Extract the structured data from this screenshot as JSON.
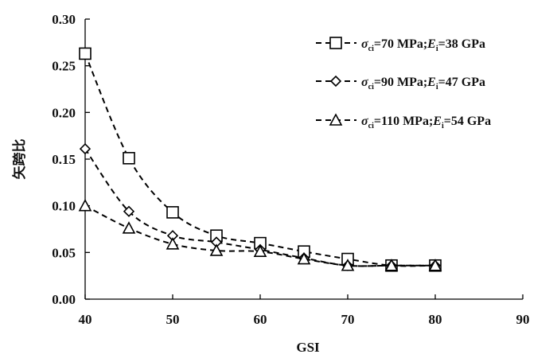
{
  "chart_data": {
    "type": "line",
    "xlabel": "GSI",
    "ylabel": "矢跨比",
    "xlim": [
      40,
      90
    ],
    "ylim": [
      0,
      0.3
    ],
    "x_ticks": [
      "40",
      "50",
      "60",
      "70",
      "80",
      "90"
    ],
    "y_ticks": [
      "0.00",
      "0.05",
      "0.10",
      "0.15",
      "0.20",
      "0.25",
      "0.30"
    ],
    "grid": false,
    "legend_position": "top-right",
    "x": [
      40,
      45,
      50,
      55,
      60,
      65,
      70,
      75,
      80
    ],
    "series": [
      {
        "name": "σci=70 MPa;Ei=38 GPa",
        "legend": {
          "sym1": "σ",
          "sub1": "ci",
          "mid": "=70 MPa;",
          "sym2": "E",
          "sub2": "i",
          "tail": "=38 GPa"
        },
        "marker": "square",
        "values": [
          0.263,
          0.151,
          0.093,
          0.068,
          0.06,
          0.051,
          0.043,
          0.036,
          0.036
        ]
      },
      {
        "name": "σci=90 MPa;Ei=47 GPa",
        "legend": {
          "sym1": "σ",
          "sub1": "ci",
          "mid": "=90 MPa;",
          "sym2": "E",
          "sub2": "i",
          "tail": "=47 GPa"
        },
        "marker": "diamond",
        "values": [
          0.161,
          0.094,
          0.068,
          0.061,
          0.053,
          0.044,
          0.036,
          0.036,
          0.036
        ]
      },
      {
        "name": "σci=110 MPa;Ei=54 GPa",
        "legend": {
          "sym1": "σ",
          "sub1": "ci",
          "mid": "=110 MPa;",
          "sym2": "E",
          "sub2": "i",
          "tail": "=54 GPa"
        },
        "marker": "triangle",
        "values": [
          0.1,
          0.076,
          0.059,
          0.052,
          0.051,
          0.043,
          0.036,
          0.036,
          0.036
        ]
      }
    ]
  }
}
